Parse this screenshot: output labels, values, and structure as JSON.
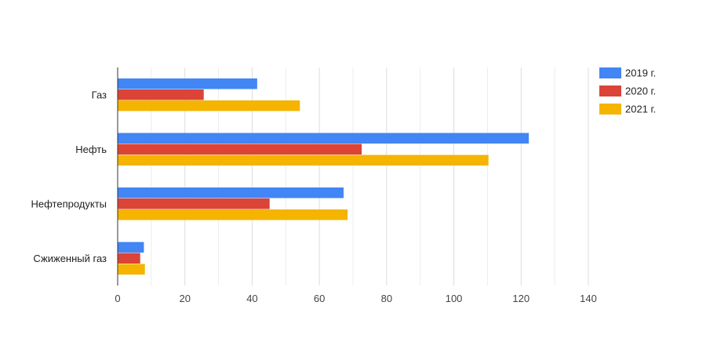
{
  "chart_data": {
    "type": "bar",
    "orientation": "horizontal",
    "categories": [
      "Газ",
      "Нефть",
      "Нефтепродукты",
      "Сжиженный газ"
    ],
    "series": [
      {
        "name": "2019 г.",
        "color": "#4285f4",
        "values": [
          41.5,
          122.3,
          67.2,
          7.8
        ]
      },
      {
        "name": "2020 г.",
        "color": "#db4437",
        "values": [
          25.6,
          72.6,
          45.2,
          6.7
        ]
      },
      {
        "name": "2021 г.",
        "color": "#f4b400",
        "values": [
          54.2,
          110.3,
          68.4,
          8.1
        ]
      }
    ],
    "xlim": [
      0,
      140
    ],
    "xticks": [
      "0",
      "20",
      "40",
      "60",
      "80",
      "100",
      "120",
      "140"
    ],
    "grid": true,
    "legend_position": "right"
  }
}
